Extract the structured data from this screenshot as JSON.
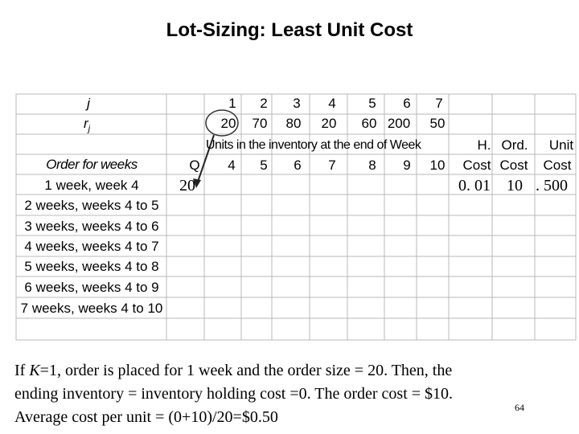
{
  "title": "Lot-Sizing: Least Unit Cost",
  "table": {
    "label_j": "j",
    "label_r": "r",
    "label_r_sub": "j",
    "weeks": [
      "1",
      "2",
      "3",
      "4",
      "5",
      "6",
      "7"
    ],
    "requirements": [
      "20",
      "70",
      "80",
      "20",
      "60",
      "200",
      "50"
    ],
    "units_header": "Units in the inventory at the end of Week",
    "order_header": "Order for weeks",
    "q_header": "Q",
    "week_end_numbers": [
      "4",
      "5",
      "6",
      "7",
      "8",
      "9",
      "10"
    ],
    "cost_headers": {
      "h": [
        "H.",
        "Cost"
      ],
      "ord": [
        "Ord.",
        "Cost"
      ],
      "unit": [
        "Unit",
        "Cost"
      ]
    },
    "rows": [
      "1 week, week 4",
      "2 weeks, weeks 4 to 5",
      "3 weeks, weeks 4 to 6",
      "4 weeks, weeks 4 to 7",
      "5 weeks, weeks 4 to 8",
      "6 weeks, weeks 4 to 9",
      "7 weeks, weeks 4 to 10"
    ],
    "row1_values": {
      "q": "20",
      "h_cost": "0. 01",
      "ord_cost": "10",
      "unit_cost": ". 500"
    }
  },
  "caption": {
    "line1_pre": "If ",
    "line1_k": "K",
    "line1_post": "=1, order is placed for 1 week and the order size = 20. Then, the",
    "line2": "ending inventory = inventory holding cost =0. The order cost = $10.",
    "line3": "Average cost per unit = (0+10)/20=$0.50"
  },
  "page_number": "64"
}
